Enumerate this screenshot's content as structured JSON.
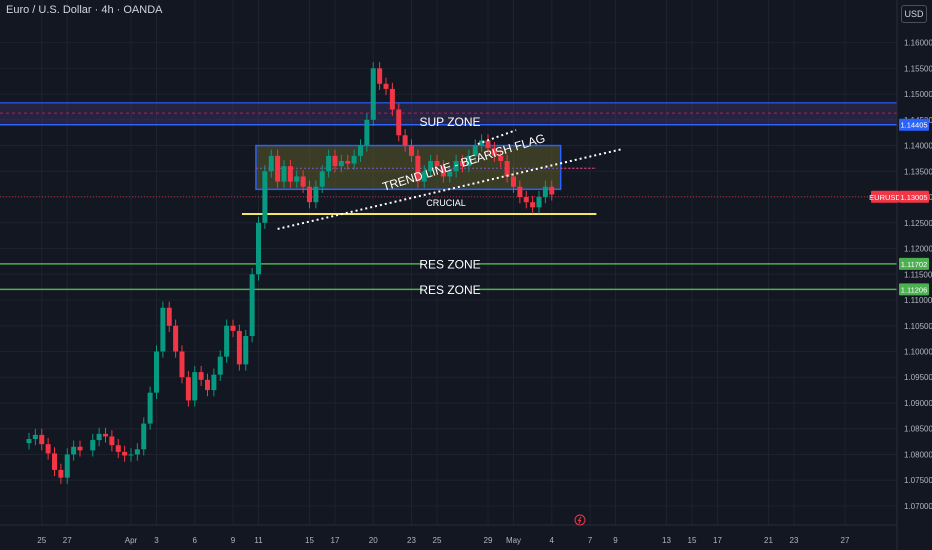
{
  "header": {
    "title": "Euro / U.S. Dollar · 4h · OANDA"
  },
  "currency": "USD",
  "colors": {
    "background": "#131722",
    "grid": "#1e222d",
    "up": "#089981",
    "down": "#f23645",
    "axis_text": "#b2b5be",
    "zone_blue": "#2962ff",
    "sup_fill": "#6b6a2a",
    "res_line": "#4caf50",
    "crucial_line": "#f5e663",
    "price_tag": "#f23645",
    "purple_band": "#4a3a7a"
  },
  "chart_data": {
    "type": "candlestick",
    "symbol": "EURUSD",
    "timeframe": "4h",
    "x_tick_labels": [
      "25",
      "27",
      "Apr",
      "3",
      "6",
      "9",
      "11",
      "15",
      "17",
      "20",
      "23",
      "25",
      "29",
      "May",
      "4",
      "7",
      "9",
      "13",
      "15",
      "17",
      "21",
      "23",
      "27"
    ],
    "x_tick_days": [
      -7,
      -5,
      0,
      2,
      5,
      8,
      10,
      14,
      16,
      19,
      22,
      24,
      28,
      30,
      33,
      36,
      38,
      42,
      44,
      46,
      50,
      52,
      56
    ],
    "y_tick_labels": [
      "1.16000",
      "1.15500",
      "1.15000",
      "1.14500",
      "1.14000",
      "1.13500",
      "1.13000",
      "1.12500",
      "1.12000",
      "1.11500",
      "1.11000",
      "1.10500",
      "1.10000",
      "1.09500",
      "1.09000",
      "1.08500",
      "1.08000",
      "1.07500",
      "1.07000"
    ],
    "y_range": [
      1.0663,
      1.1673
    ],
    "current_price": {
      "symbol": "EURUSD",
      "value": "1.13005"
    },
    "price_labels": [
      {
        "value": "1.14405",
        "level": 1.14405,
        "color": "#2962ff"
      },
      {
        "value": "1.11702",
        "level": 1.11702,
        "color": "#4caf50"
      },
      {
        "value": "1.11206",
        "level": 1.11206,
        "color": "#4caf50"
      }
    ],
    "annotations": {
      "sup_zone": "SUP ZONE",
      "trend_line": "TREND LINE - BEARISH FLAG",
      "crucial": "CRUCIAL",
      "res_zone_1": "RES ZONE",
      "res_zone_2": "RES ZONE"
    },
    "levels": {
      "purple_band_top": 1.1483,
      "purple_band_mid": 1.1463,
      "purple_band_bottom": 1.14405,
      "sup_box_top": 1.14,
      "sup_box_mid": 1.1356,
      "sup_box_bottom": 1.1315,
      "crucial": 1.1267,
      "res_1": 1.11702,
      "res_2": 1.11206,
      "sup_box_start_day": 9.8,
      "sup_box_end_day": 33.7,
      "crucial_start_day": 8.7,
      "crucial_end_day": 36.5,
      "trend_lower_line": [
        [
          11.5,
          1.1238
        ],
        [
          38.5,
          1.1393
        ]
      ],
      "trend_upper_line": [
        [
          27.2,
          1.1403
        ],
        [
          30.2,
          1.143
        ]
      ],
      "res_dashed_end_day": 36.5
    },
    "closes": [
      {
        "day": -8,
        "close": 1.083
      },
      {
        "day": -7.5,
        "close": 1.0838
      },
      {
        "day": -7,
        "close": 1.082
      },
      {
        "day": -6.5,
        "close": 1.0802
      },
      {
        "day": -6,
        "close": 1.077
      },
      {
        "day": -5.5,
        "close": 1.0755
      },
      {
        "day": -5,
        "close": 1.08
      },
      {
        "day": -4.5,
        "close": 1.0815
      },
      {
        "day": -4,
        "close": 1.0808
      },
      {
        "day": -3,
        "close": 1.0828
      },
      {
        "day": -2.5,
        "close": 1.084
      },
      {
        "day": -2,
        "close": 1.0835
      },
      {
        "day": -1.5,
        "close": 1.0818
      },
      {
        "day": -1,
        "close": 1.0805
      },
      {
        "day": -0.5,
        "close": 1.0798
      },
      {
        "day": 0,
        "close": 1.08
      },
      {
        "day": 0.5,
        "close": 1.081
      },
      {
        "day": 1,
        "close": 1.086
      },
      {
        "day": 1.5,
        "close": 1.092
      },
      {
        "day": 2,
        "close": 1.1
      },
      {
        "day": 2.5,
        "close": 1.1085
      },
      {
        "day": 3,
        "close": 1.105
      },
      {
        "day": 3.5,
        "close": 1.1
      },
      {
        "day": 4,
        "close": 1.095
      },
      {
        "day": 4.5,
        "close": 1.0905
      },
      {
        "day": 5,
        "close": 1.096
      },
      {
        "day": 5.5,
        "close": 1.0945
      },
      {
        "day": 6,
        "close": 1.0925
      },
      {
        "day": 6.5,
        "close": 1.0955
      },
      {
        "day": 7,
        "close": 1.099
      },
      {
        "day": 7.5,
        "close": 1.105
      },
      {
        "day": 8,
        "close": 1.104
      },
      {
        "day": 8.5,
        "close": 1.0975
      },
      {
        "day": 9,
        "close": 1.103
      },
      {
        "day": 9.5,
        "close": 1.115
      },
      {
        "day": 10,
        "close": 1.125
      },
      {
        "day": 10.5,
        "close": 1.135
      },
      {
        "day": 11,
        "close": 1.138
      },
      {
        "day": 11.5,
        "close": 1.133
      },
      {
        "day": 12,
        "close": 1.136
      },
      {
        "day": 12.5,
        "close": 1.133
      },
      {
        "day": 13,
        "close": 1.134
      },
      {
        "day": 13.5,
        "close": 1.132
      },
      {
        "day": 14,
        "close": 1.129
      },
      {
        "day": 14.5,
        "close": 1.132
      },
      {
        "day": 15,
        "close": 1.135
      },
      {
        "day": 15.5,
        "close": 1.138
      },
      {
        "day": 16,
        "close": 1.136
      },
      {
        "day": 16.5,
        "close": 1.137
      },
      {
        "day": 17,
        "close": 1.1365
      },
      {
        "day": 17.5,
        "close": 1.138
      },
      {
        "day": 18,
        "close": 1.14
      },
      {
        "day": 18.5,
        "close": 1.145
      },
      {
        "day": 19,
        "close": 1.155
      },
      {
        "day": 19.5,
        "close": 1.152
      },
      {
        "day": 20,
        "close": 1.151
      },
      {
        "day": 20.5,
        "close": 1.147
      },
      {
        "day": 21,
        "close": 1.142
      },
      {
        "day": 21.5,
        "close": 1.14
      },
      {
        "day": 22,
        "close": 1.138
      },
      {
        "day": 22.5,
        "close": 1.133
      },
      {
        "day": 23,
        "close": 1.135
      },
      {
        "day": 23.5,
        "close": 1.137
      },
      {
        "day": 24,
        "close": 1.136
      },
      {
        "day": 24.5,
        "close": 1.134
      },
      {
        "day": 25,
        "close": 1.135
      },
      {
        "day": 25.5,
        "close": 1.137
      },
      {
        "day": 26,
        "close": 1.136
      },
      {
        "day": 26.5,
        "close": 1.138
      },
      {
        "day": 27,
        "close": 1.14
      },
      {
        "day": 27.5,
        "close": 1.141
      },
      {
        "day": 28,
        "close": 1.1395
      },
      {
        "day": 28.5,
        "close": 1.138
      },
      {
        "day": 29,
        "close": 1.137
      },
      {
        "day": 29.5,
        "close": 1.134
      },
      {
        "day": 30,
        "close": 1.132
      },
      {
        "day": 30.5,
        "close": 1.13
      },
      {
        "day": 31,
        "close": 1.129
      },
      {
        "day": 31.5,
        "close": 1.128
      },
      {
        "day": 32,
        "close": 1.13
      },
      {
        "day": 32.5,
        "close": 1.132
      },
      {
        "day": 33,
        "close": 1.1305
      }
    ]
  }
}
